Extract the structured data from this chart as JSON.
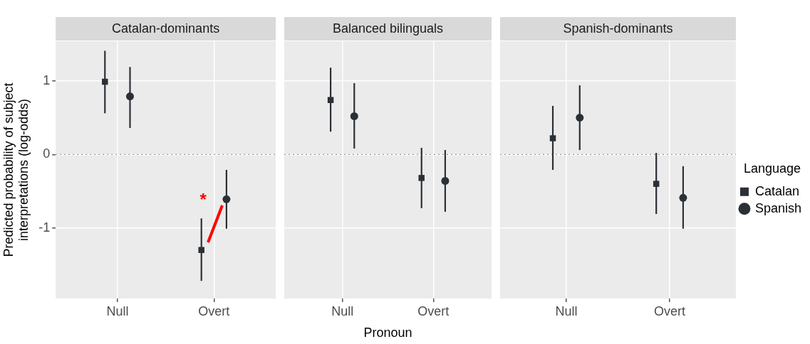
{
  "chart_data": [
    {
      "type": "scatter",
      "title": "Catalan-dominants",
      "ylabel": "Predicted probability of subject interpretations (log-odds)",
      "categories": [
        "Null",
        "Overt"
      ],
      "ylim": [
        -1.96,
        1.54
      ],
      "yticks": [
        -1,
        0,
        1
      ],
      "grid": true,
      "legend": false,
      "annotations": [
        "*"
      ],
      "ref_lines": [
        {
          "axis": "y",
          "value": 0,
          "color": "#999999",
          "line_style": "dotted"
        }
      ],
      "series": [
        {
          "color": "#2b3036",
          "marker": "square",
          "values": [
            0.99,
            -1.3
          ],
          "errors": [
            [
              0.56,
              1.41
            ],
            [
              -1.72,
              -0.87
            ]
          ]
        },
        {
          "color": "#2b3036",
          "marker": "circle",
          "values": [
            0.79,
            -0.61
          ],
          "errors": [
            [
              0.36,
              1.19
            ],
            [
              -1.01,
              -0.21
            ]
          ]
        }
      ]
    },
    {
      "type": "scatter",
      "title": "Balanced bilinguals",
      "xlabel": "Pronoun",
      "categories": [
        "Null",
        "Overt"
      ],
      "ylim": [
        -1.96,
        1.54
      ],
      "yticks": [
        -1,
        0,
        1
      ],
      "tick_labels": "x",
      "grid": true,
      "legend": false,
      "ref_lines": [
        {
          "axis": "y",
          "value": 0,
          "color": "#999999",
          "line_style": "dotted"
        }
      ],
      "series": [
        {
          "color": "#2b3036",
          "marker": "square",
          "values": [
            0.74,
            -0.32
          ],
          "errors": [
            [
              0.31,
              1.18
            ],
            [
              -0.73,
              0.09
            ]
          ]
        },
        {
          "color": "#2b3036",
          "marker": "circle",
          "values": [
            0.52,
            -0.36
          ],
          "errors": [
            [
              0.08,
              0.97
            ],
            [
              -0.78,
              0.06
            ]
          ]
        }
      ]
    },
    {
      "type": "scatter",
      "title": "Spanish-dominants",
      "legend_title": "Language",
      "categories": [
        "Null",
        "Overt"
      ],
      "ylim": [
        -1.96,
        1.54
      ],
      "yticks": [
        -1,
        0,
        1
      ],
      "tick_labels": "x",
      "grid": true,
      "legend": "right",
      "ref_lines": [
        {
          "axis": "y",
          "value": 0,
          "color": "#999999",
          "line_style": "dotted"
        }
      ],
      "series": [
        {
          "name": "Catalan",
          "color": "#2b3036",
          "marker": "square",
          "values": [
            0.22,
            -0.4
          ],
          "errors": [
            [
              -0.21,
              0.66
            ],
            [
              -0.81,
              0.02
            ]
          ]
        },
        {
          "name": "Spanish",
          "color": "#2b3036",
          "marker": "circle",
          "values": [
            0.5,
            -0.59
          ],
          "errors": [
            [
              0.06,
              0.94
            ],
            [
              -1.01,
              -0.16
            ]
          ]
        }
      ]
    }
  ]
}
